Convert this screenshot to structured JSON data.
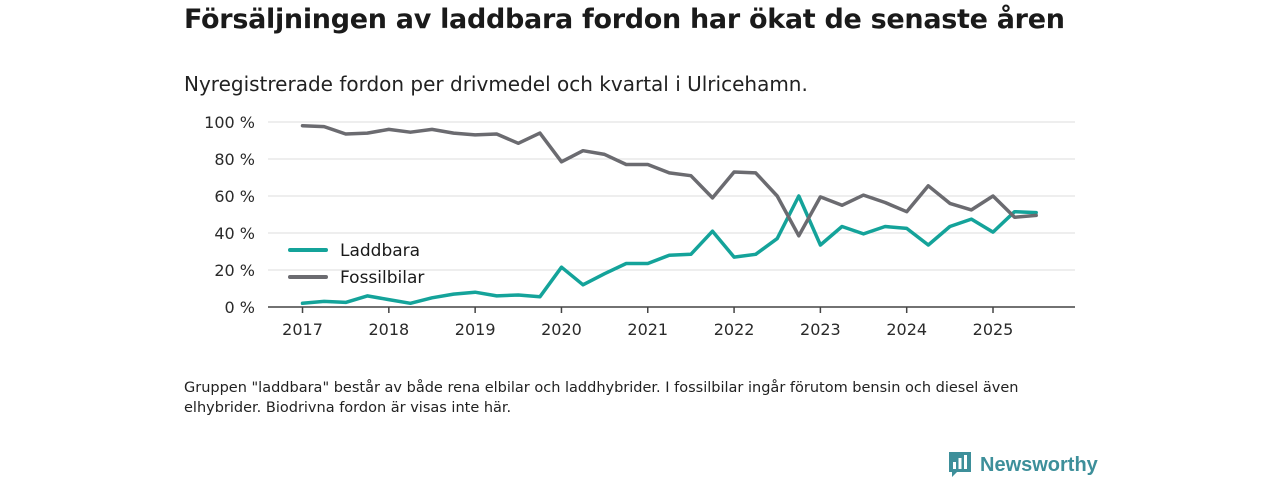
{
  "header": {
    "title": "Försäljningen av laddbara fordon har ökat de senaste åren",
    "subtitle": "Nyregistrerade fordon per drivmedel och kvartal i Ulricehamn."
  },
  "footer": {
    "note": "Gruppen \"laddbara\" består av både rena elbilar och laddhybrider. I fossilbilar ingår förutom bensin och diesel även elhybrider. Biodrivna fordon är visas inte här.",
    "brand": "Newsworthy"
  },
  "colors": {
    "laddbara": "#14a39a",
    "fossil": "#6b6b70",
    "grid": "#dcdcdc",
    "axis": "#444444",
    "brand": "#3d8f9a"
  },
  "chart_data": {
    "type": "line",
    "title": "Försäljningen av laddbara fordon har ökat de senaste åren",
    "subtitle": "Nyregistrerade fordon per drivmedel och kvartal i Ulricehamn.",
    "xlabel": "",
    "ylabel": "",
    "x_start": 2017.0,
    "x_step": 0.25,
    "xlim": [
      2016.6,
      2025.95
    ],
    "ylim": [
      0,
      100
    ],
    "x_ticks": [
      2017,
      2018,
      2019,
      2020,
      2021,
      2022,
      2023,
      2024,
      2025
    ],
    "x_tick_labels": [
      "2017",
      "2018",
      "2019",
      "2020",
      "2021",
      "2022",
      "2023",
      "2024",
      "2025"
    ],
    "y_ticks": [
      0,
      20,
      40,
      60,
      80,
      100
    ],
    "y_tick_labels": [
      "0 %",
      "20 %",
      "40 %",
      "60 %",
      "80 %",
      "100 %"
    ],
    "grid": true,
    "legend_position": "left-middle",
    "series": [
      {
        "name": "Laddbara",
        "values": [
          2,
          3,
          2.5,
          6,
          4,
          2,
          5,
          7,
          8,
          6,
          6.5,
          5.5,
          21.5,
          12,
          18,
          23.5,
          23.5,
          28,
          28.5,
          41,
          27,
          28.5,
          37,
          60,
          33.5,
          43.5,
          39.5,
          43.5,
          42.5,
          33.5,
          43.5,
          47.5,
          40.5,
          51.5,
          51
        ]
      },
      {
        "name": "Fossilbilar",
        "values": [
          98,
          97.5,
          93.5,
          94,
          96,
          94.5,
          96,
          94,
          93,
          93.5,
          88.5,
          94,
          78.5,
          84.5,
          82.5,
          77,
          77,
          72.5,
          71,
          59,
          73,
          72.5,
          60,
          38.5,
          59.5,
          55,
          60.5,
          56.5,
          51.5,
          65.5,
          56,
          52.5,
          60,
          48.5,
          49.5
        ]
      }
    ]
  }
}
